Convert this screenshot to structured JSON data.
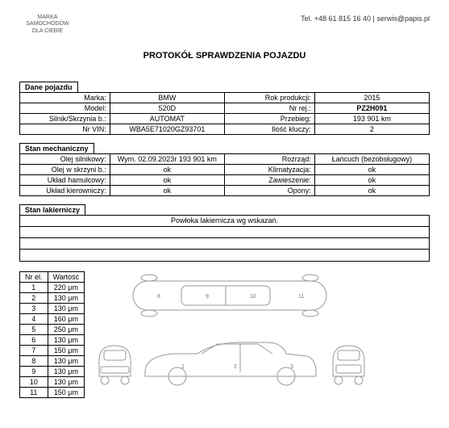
{
  "header": {
    "brand_line1": "MARKA",
    "brand_line2": "SAMOCHODÓW",
    "brand_line3": "DLA CIEBIE",
    "contact": "Tel. +48 61 815 16 40 | serwis@papis.pl"
  },
  "title": "PROTOKÓŁ SPRAWDZENIA POJAZDU",
  "sections": {
    "vehicle_data": "Dane pojazdu",
    "mechanical": "Stan mechaniczny",
    "paint": "Stan lakierniczy"
  },
  "vehicle": {
    "labels": {
      "marka": "Marka:",
      "model": "Model:",
      "silnik": "Silnik/Skrzynia b.:",
      "vin": "Nr VIN:",
      "rok": "Rok produkcji:",
      "rej": "Nr rej.:",
      "przebieg": "Przebieg:",
      "klucze": "Ilość kluczy:"
    },
    "marka": "BMW",
    "model": "520D",
    "silnik": "AUTOMAT",
    "vin": "WBA5E71020GZ93701",
    "rok": "2015",
    "rej": "PZ2H091",
    "przebieg": "193 901 km",
    "klucze": "2"
  },
  "mech": {
    "labels": {
      "olej_sil": "Olej silnikowy:",
      "olej_skr": "Olej w skrzyni b.:",
      "hamulcowy": "Układ hamulcowy:",
      "kierowniczy": "Układ kierowniczy:",
      "rozrzad": "Rozrząd:",
      "klimat": "Klimatyzacja:",
      "zawieszenie": "Zawieszenie:",
      "opony": "Opony:"
    },
    "olej_sil": "Wym. 02.09.2023r 193 901 km",
    "olej_skr": "ok",
    "hamulcowy": "ok",
    "kierowniczy": "ok",
    "rozrzad": "Łańcuch (bezobsługowy)",
    "klimat": "ok",
    "zawieszenie": "ok",
    "opony": "ok"
  },
  "paint_note": "Powłoka lakiernicza wg wskazań.",
  "meas": {
    "headers": {
      "nr": "Nr el.",
      "val": "Wartość"
    },
    "rows": [
      {
        "n": "1",
        "v": "220 μm"
      },
      {
        "n": "2",
        "v": "130 μm"
      },
      {
        "n": "3",
        "v": "130 μm"
      },
      {
        "n": "4",
        "v": "160 μm"
      },
      {
        "n": "5",
        "v": "250 μm"
      },
      {
        "n": "6",
        "v": "130 μm"
      },
      {
        "n": "7",
        "v": "150 μm"
      },
      {
        "n": "8",
        "v": "130 μm"
      },
      {
        "n": "9",
        "v": "130 μm"
      },
      {
        "n": "10",
        "v": "130 μm"
      },
      {
        "n": "11",
        "v": "150 μm"
      }
    ]
  }
}
